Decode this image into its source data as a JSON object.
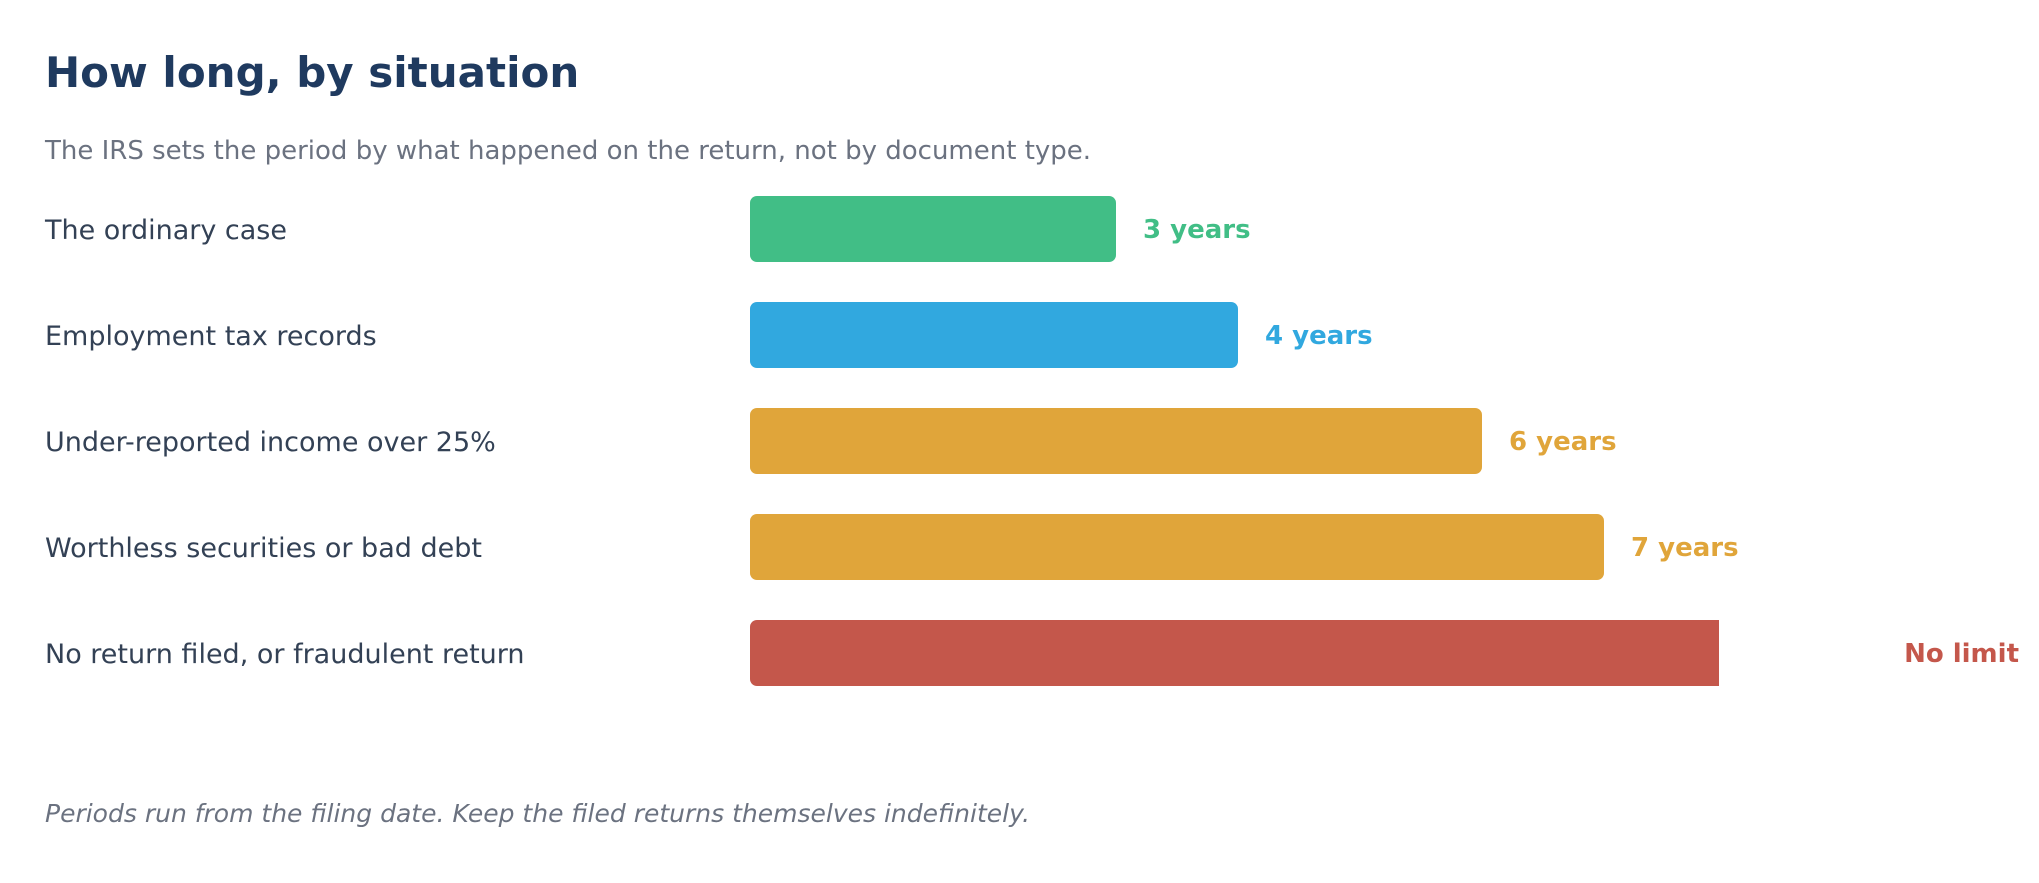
{
  "header": {
    "title": "How long, by situation",
    "subtitle": "The IRS sets the period by what happened on the return, not by document type."
  },
  "footnote": "Periods run from the filing date. Keep the filed returns themselves indefinitely.",
  "chart_data": {
    "type": "bar",
    "orientation": "horizontal",
    "title": "How long, by situation",
    "subtitle": "The IRS sets the period by what happened on the return, not by document type.",
    "xlabel": "",
    "ylabel": "",
    "grid": false,
    "legend": "none",
    "unit": "years",
    "categories": [
      "The ordinary case",
      "Employment tax records",
      "Under-reported income over 25%",
      "Worthless securities or bad debt",
      "No return filed, or fraudulent return"
    ],
    "values": [
      3,
      4,
      6,
      7,
      null
    ],
    "value_labels": [
      "3 years",
      "4 years",
      "6 years",
      "7 years",
      "No limit"
    ],
    "unbounded": [
      false,
      false,
      false,
      false,
      true
    ],
    "colors": [
      "#41be86",
      "#31a8df",
      "#e0a53a",
      "#e0a53a",
      "#c4574b"
    ]
  }
}
